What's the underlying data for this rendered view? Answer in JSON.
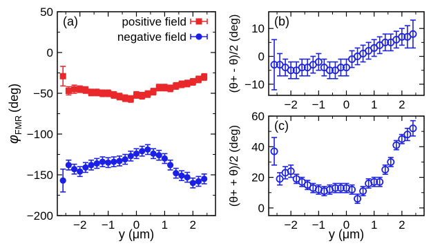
{
  "colors": {
    "red": "#e8282b",
    "blue": "#1a20e6",
    "axis": "#000000"
  },
  "chart_data": [
    {
      "id": "a",
      "type": "scatter",
      "panel_label": "(a)",
      "ylabel_main": "φ",
      "ylabel_sub": "FMR",
      "ylabel_unit": "(deg)",
      "xlabel": "y (μm)",
      "xlim": [
        -2.8,
        2.8
      ],
      "ylim": [
        -200,
        50
      ],
      "xticks": [
        -2,
        -1,
        0,
        1,
        2
      ],
      "yticks": [
        -200,
        -150,
        -100,
        -50,
        0,
        50
      ],
      "legend_position": "top-right",
      "series": [
        {
          "name": "positive field",
          "color": "#e8282b",
          "marker": "square",
          "x": [
            -2.6,
            -2.4,
            -2.2,
            -2.0,
            -1.8,
            -1.6,
            -1.4,
            -1.2,
            -1.0,
            -0.8,
            -0.6,
            -0.4,
            -0.2,
            0.0,
            0.2,
            0.4,
            0.6,
            0.8,
            1.0,
            1.2,
            1.4,
            1.6,
            1.8,
            2.0,
            2.2,
            2.4
          ],
          "y": [
            -29,
            -47,
            -45,
            -45,
            -46,
            -49,
            -49,
            -50,
            -50,
            -52,
            -54,
            -56,
            -57,
            -52,
            -53,
            -51,
            -48,
            -43,
            -43,
            -44,
            -41,
            -39,
            -38,
            -36,
            -33,
            -30
          ],
          "err": [
            12,
            5,
            5,
            4,
            4,
            4,
            4,
            4,
            4,
            4,
            4,
            4,
            4,
            4,
            4,
            4,
            4,
            4,
            4,
            4,
            4,
            4,
            4,
            4,
            4,
            4
          ]
        },
        {
          "name": "negative field",
          "color": "#1a20e6",
          "marker": "circle",
          "x": [
            -2.6,
            -2.4,
            -2.2,
            -2.0,
            -1.8,
            -1.6,
            -1.4,
            -1.2,
            -1.0,
            -0.8,
            -0.6,
            -0.4,
            -0.2,
            0.0,
            0.2,
            0.4,
            0.6,
            0.8,
            1.0,
            1.2,
            1.4,
            1.6,
            1.8,
            2.0,
            2.2,
            2.4
          ],
          "y": [
            -157,
            -138,
            -143,
            -146,
            -141,
            -138,
            -136,
            -134,
            -135,
            -134,
            -133,
            -131,
            -127,
            -124,
            -121,
            -119,
            -124,
            -126,
            -130,
            -138,
            -148,
            -151,
            -153,
            -160,
            -158,
            -155
          ],
          "err": [
            14,
            6,
            6,
            6,
            6,
            6,
            6,
            6,
            6,
            6,
            6,
            6,
            6,
            6,
            6,
            6,
            6,
            6,
            6,
            6,
            6,
            6,
            6,
            6,
            6,
            6
          ]
        }
      ]
    },
    {
      "id": "b",
      "type": "scatter",
      "panel_label": "(b)",
      "ylabel": "(θ+ - θ)/2 (deg)",
      "xlim": [
        -2.8,
        2.8
      ],
      "ylim": [
        -14,
        16
      ],
      "xticks": [
        -2,
        -1,
        0,
        1,
        2
      ],
      "yticks": [
        -10,
        0,
        10
      ],
      "series": [
        {
          "color": "#1a20e6",
          "marker": "circle",
          "x": [
            -2.6,
            -2.4,
            -2.2,
            -2.0,
            -1.8,
            -1.6,
            -1.4,
            -1.2,
            -1.0,
            -0.8,
            -0.6,
            -0.4,
            -0.2,
            0.0,
            0.2,
            0.4,
            0.6,
            0.8,
            1.0,
            1.2,
            1.4,
            1.6,
            1.8,
            2.0,
            2.2,
            2.4
          ],
          "y": [
            -3,
            -3,
            -4,
            -5,
            -5,
            -4,
            -4,
            -3,
            -2,
            -4,
            -5,
            -5,
            -4,
            -4,
            -1,
            0,
            1,
            2,
            3,
            4,
            5,
            5,
            6,
            7,
            7,
            8
          ],
          "err": [
            9,
            4,
            3,
            3,
            3,
            3,
            3,
            3,
            3,
            3,
            3,
            3,
            3,
            3,
            3,
            3,
            3,
            3,
            3,
            3,
            3,
            3,
            3,
            3,
            4,
            5
          ]
        }
      ]
    },
    {
      "id": "c",
      "type": "scatter",
      "panel_label": "(c)",
      "ylabel": "(θ+ + θ)/2 (deg)",
      "xlabel": "y (μm)",
      "xlim": [
        -2.8,
        2.8
      ],
      "ylim": [
        -5,
        60
      ],
      "xticks": [
        -2,
        -1,
        0,
        1,
        2
      ],
      "yticks": [
        0,
        20,
        40,
        60
      ],
      "series": [
        {
          "color": "#1a20e6",
          "marker": "circle",
          "x": [
            -2.6,
            -2.4,
            -2.2,
            -2.0,
            -1.8,
            -1.6,
            -1.4,
            -1.2,
            -1.0,
            -0.8,
            -0.6,
            -0.4,
            -0.2,
            0.0,
            0.2,
            0.4,
            0.6,
            0.8,
            1.0,
            1.2,
            1.4,
            1.6,
            1.8,
            2.0,
            2.2,
            2.4
          ],
          "y": [
            37,
            19,
            23,
            24,
            19,
            17,
            15,
            13,
            12,
            11,
            12,
            13,
            13,
            13,
            12,
            6,
            11,
            16,
            17,
            17,
            25,
            30,
            41,
            45,
            48,
            52
          ],
          "err": [
            9,
            4,
            4,
            4,
            3,
            3,
            3,
            3,
            3,
            3,
            3,
            3,
            3,
            3,
            3,
            3,
            3,
            3,
            3,
            3,
            3,
            3,
            3,
            3,
            4,
            5
          ]
        }
      ]
    }
  ]
}
